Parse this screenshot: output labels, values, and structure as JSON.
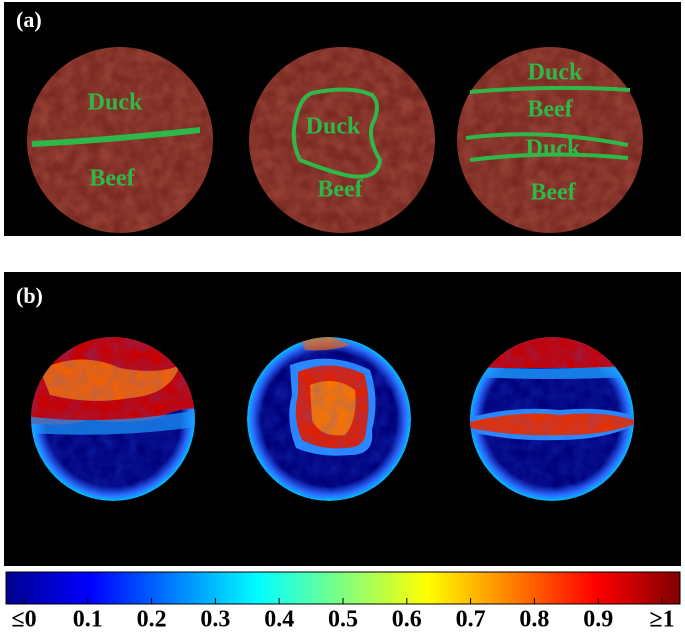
{
  "panel_a": {
    "label": "(a)",
    "samples": [
      {
        "labels": [
          "Duck",
          "Beef"
        ]
      },
      {
        "labels": [
          "Duck",
          "Beef"
        ]
      },
      {
        "labels": [
          "Duck",
          "Beef",
          "Duck",
          "Beef"
        ]
      }
    ]
  },
  "panel_b": {
    "label": "(b)"
  },
  "colorbar": {
    "ticks": [
      {
        "value": 0,
        "label": "≤0"
      },
      0.1,
      0.2,
      0.3,
      0.4,
      0.5,
      0.6,
      0.7,
      0.8,
      0.9,
      {
        "value": 1,
        "label": "≥1"
      }
    ]
  }
}
